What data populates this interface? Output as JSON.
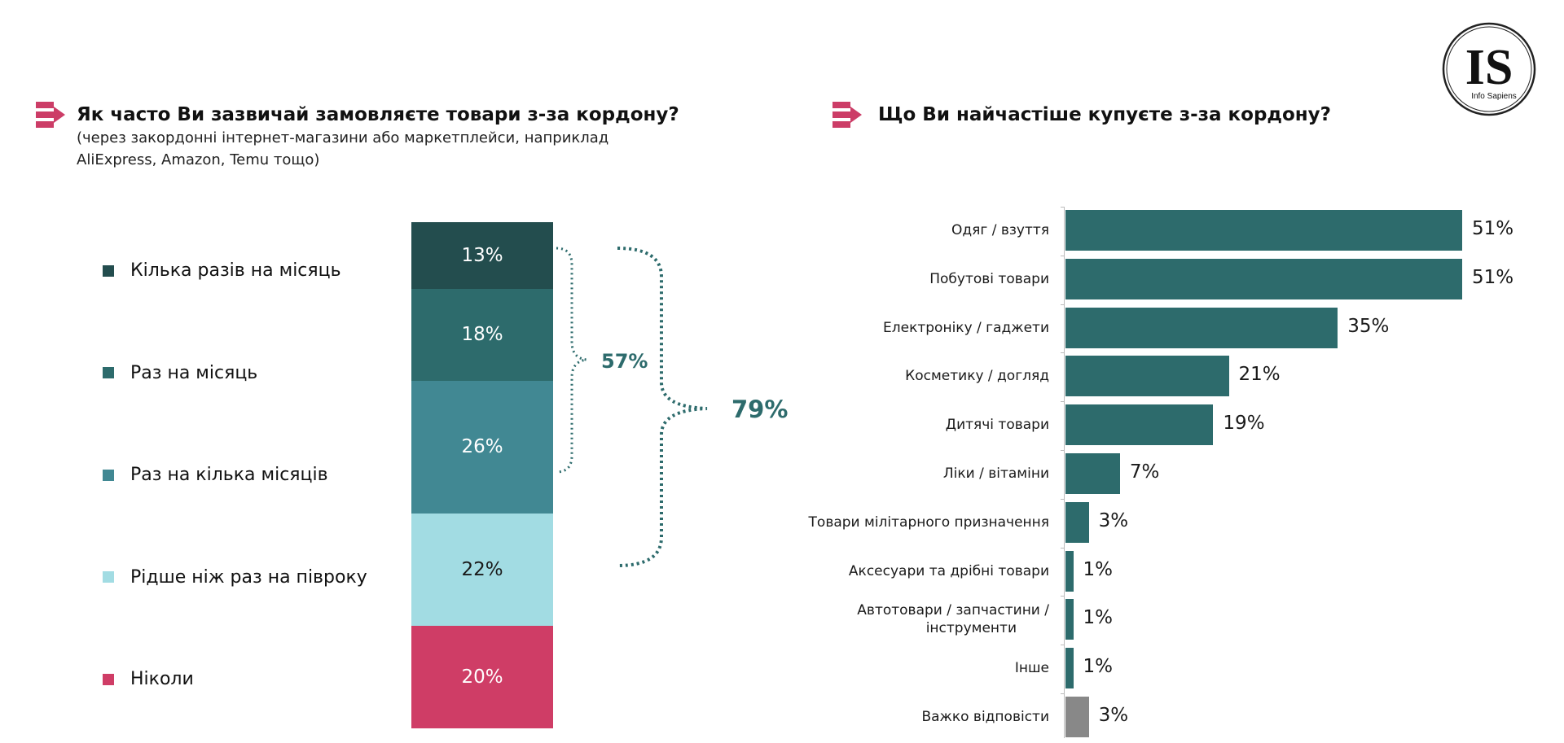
{
  "left_section": {
    "title": "Як часто Ви зазвичай замовляєте товари з-за кордону?",
    "subtitle_line1": "(через закордонні інтернет-магазини або маркетплейси, наприклад",
    "subtitle_line2": "AliExpress, Amazon, Temu тощо)",
    "bracket_inner": "57%",
    "bracket_outer": "79%"
  },
  "right_section": {
    "title": "Що Ви найчастіше купуєте з-за кордону?"
  },
  "logo": {
    "letters": "IS",
    "name": "Info Sapiens"
  },
  "colors": {
    "accent_pink": "#cc3d67",
    "teal_dark": "#234d4e",
    "teal": "#2d6b6c",
    "teal_mid": "#418893",
    "light_blue": "#a2dce3",
    "pink": "#cf3d66",
    "gray": "#888888"
  },
  "chart_data": [
    {
      "type": "bar",
      "orientation": "stacked-vertical",
      "categories": [
        "Кілька разів на місяць",
        "Раз на місяць",
        "Раз на кілька місяців",
        "Рідше ніж раз на півроку",
        "Ніколи"
      ],
      "values": [
        13,
        18,
        26,
        22,
        20
      ],
      "labels": [
        "13%",
        "18%",
        "26%",
        "22%",
        "20%"
      ],
      "colors": [
        "#234d4e",
        "#2d6b6c",
        "#418893",
        "#a2dce3",
        "#cf3d66"
      ],
      "label_colors": [
        "#ffffff",
        "#ffffff",
        "#ffffff",
        "#1a1a1a",
        "#ffffff"
      ],
      "legend_position": "left"
    },
    {
      "type": "bar",
      "orientation": "horizontal",
      "categories": [
        "Одяг / взуття",
        "Побутові товари",
        "Електроніку / гаджети",
        "Косметику / догляд",
        "Дитячі товари",
        "Ліки / вітаміни",
        "Товари мілітарного призначення",
        "Аксесуари та дрібні товари",
        "Автотовари / запчастини / інструменти",
        "Інше",
        "Важко відповісти"
      ],
      "category_lines": [
        [
          "Одяг / взуття"
        ],
        [
          "Побутові товари"
        ],
        [
          "Електроніку / гаджети"
        ],
        [
          "Косметику / догляд"
        ],
        [
          "Дитячі товари"
        ],
        [
          "Ліки / вітаміни"
        ],
        [
          "Товари мілітарного призначення"
        ],
        [
          "Аксесуари та дрібні товари"
        ],
        [
          "Автотовари / запчастини /",
          "інструменти"
        ],
        [
          "Інше"
        ],
        [
          "Важко відповісти"
        ]
      ],
      "values": [
        51,
        51,
        35,
        21,
        19,
        7,
        3,
        1,
        1,
        1,
        3
      ],
      "labels": [
        "51%",
        "51%",
        "35%",
        "21%",
        "19%",
        "7%",
        "3%",
        "1%",
        "1%",
        "1%",
        "3%"
      ],
      "colors": [
        "#2d6b6c",
        "#2d6b6c",
        "#2d6b6c",
        "#2d6b6c",
        "#2d6b6c",
        "#2d6b6c",
        "#2d6b6c",
        "#2d6b6c",
        "#2d6b6c",
        "#2d6b6c",
        "#888888"
      ],
      "xlim": [
        0,
        51
      ]
    }
  ]
}
